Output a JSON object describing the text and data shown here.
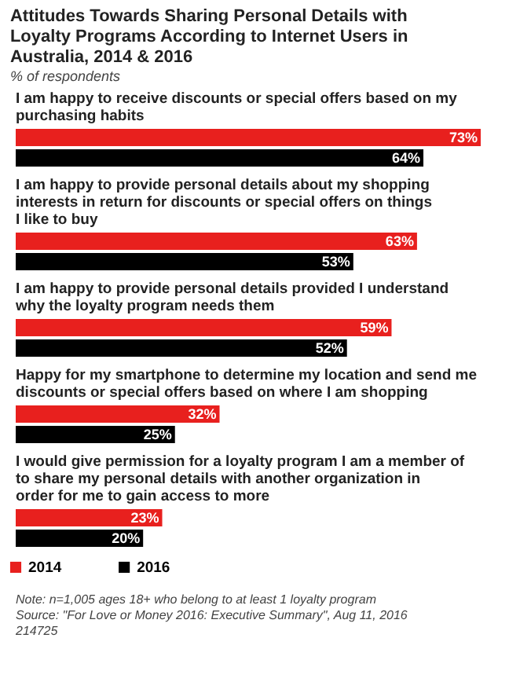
{
  "chart_data": {
    "type": "bar",
    "orientation": "horizontal",
    "title": "Attitudes Towards Sharing Personal Details with Loyalty Programs According to Internet Users in Australia, 2014 & 2016",
    "subtitle": "% of respondents",
    "categories": [
      "I am happy to receive discounts or special offers based on my purchasing habits",
      "I am happy to provide personal details about my shopping interests in return for discounts or special offers on things I like to buy",
      "I am happy to provide personal details provided I understand why the loyalty program needs them",
      "Happy for my smartphone to determine my location and send me discounts or special offers based on where I am shopping",
      "I would give permission for a loyalty program I am a member of to share my personal details with another organization in order for me to gain access to more"
    ],
    "series": [
      {
        "name": "2014",
        "color": "#e8201e",
        "values": [
          73,
          63,
          59,
          32,
          23
        ],
        "value_labels": [
          "73%",
          "63%",
          "59%",
          "32%",
          "23%"
        ]
      },
      {
        "name": "2016",
        "color": "#000000",
        "values": [
          64,
          53,
          52,
          25,
          20
        ],
        "value_labels": [
          "64%",
          "53%",
          "52%",
          "25%",
          "20%"
        ]
      }
    ],
    "legend": "bottom",
    "annotations": [
      "Note: n=1,005 ages 18+ who belong to at least 1 loyalty program",
      "Source: \"For Love or Money 2016: Executive Summary\", Aug 11, 2016",
      "214725"
    ]
  }
}
